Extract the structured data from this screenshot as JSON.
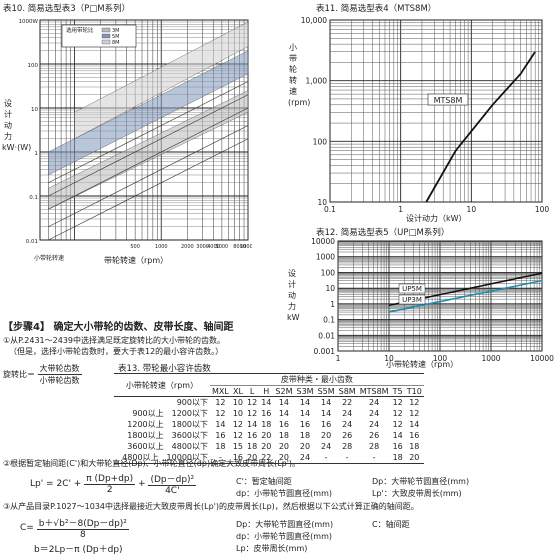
{
  "fig10": {
    "caption": "表10. 简易选型表3（P□M系列）",
    "legend_title": "选用带轮比",
    "legend_items": [
      "3M",
      "5M",
      "8M"
    ],
    "y_label": "设计动力 kW·(W)",
    "y_ticks": [
      "1000W",
      "100",
      "10",
      "1",
      "0.1",
      "0.01"
    ],
    "x_label": "带轮转速（rpm）",
    "x_ticks": [
      "500",
      "1000",
      "2000",
      "3000",
      "4000",
      "5000",
      "8000",
      "10000"
    ],
    "note": "小带轮转速"
  },
  "fig11": {
    "caption": "表11. 简易选型表4（MTS8M）",
    "y_label": "小带轮转速 (rpm)",
    "y_ticks": [
      "10,000",
      "1,000",
      "100",
      "10"
    ],
    "x_ticks": [
      "0.1",
      "1",
      "10",
      "100"
    ],
    "x_label": "设计动力（kW）",
    "series_label": "MTS8M"
  },
  "fig12": {
    "caption": "表12. 简易选型表5（UP□M系列）",
    "y_label": "设计动力 kW",
    "y_ticks": [
      "10000",
      "1000",
      "100",
      "10",
      "1",
      "0.1",
      "0.01",
      "0.001"
    ],
    "x_ticks": [
      "1",
      "10",
      "100",
      "1000",
      "10000"
    ],
    "x_label": "小带轮转速（rpm）",
    "series": [
      "UP3M",
      "UP5M"
    ]
  },
  "step4": {
    "title": "【步骤4】 确定大小带轮的齿数、皮带长度、轴间距",
    "item1_line1": "①从P.2431～2439中选择满足既定旋转比的大小带轮的齿数。",
    "item1_line2": "（但是，选择小带轮齿数时，要大于表12的最小容许齿数。）",
    "ratio_label": "旋转比＝",
    "ratio_num": "大带轮齿数",
    "ratio_den": "小带轮齿数"
  },
  "table13": {
    "caption": "表13. 带轮最小容许齿数",
    "rpm_header": "小带轮转速（rpm）",
    "group_header": "皮带种类・最小齿数",
    "columns": [
      "MXL",
      "XL",
      "L",
      "H",
      "S2M",
      "S3M",
      "S5M",
      "S8M",
      "MTS8M",
      "T5",
      "T10"
    ],
    "rows": [
      {
        "rpm": "900以下",
        "values": [
          "12",
          "10",
          "12",
          "14",
          "14",
          "14",
          "14",
          "22",
          "24",
          "12",
          "12"
        ]
      },
      {
        "rpm": "900以上　1200以下",
        "values": [
          "12",
          "10",
          "12",
          "16",
          "14",
          "14",
          "14",
          "24",
          "24",
          "12",
          "12"
        ]
      },
      {
        "rpm": "1200以上　1800以下",
        "values": [
          "14",
          "12",
          "14",
          "18",
          "16",
          "16",
          "16",
          "24",
          "24",
          "12",
          "14"
        ]
      },
      {
        "rpm": "1800以上　3600以下",
        "values": [
          "16",
          "12",
          "16",
          "20",
          "18",
          "18",
          "20",
          "26",
          "26",
          "14",
          "16"
        ]
      },
      {
        "rpm": "3600以上　4800以下",
        "values": [
          "18",
          "15",
          "18",
          "20",
          "20",
          "20",
          "24",
          "28",
          "28",
          "16",
          "18"
        ]
      },
      {
        "rpm": "4800以上　10000以下",
        "values": [
          "-",
          "16",
          "20",
          "22",
          "20",
          "24",
          "-",
          "-",
          "-",
          "18",
          "20"
        ]
      }
    ]
  },
  "item2": {
    "text": "②根据暂定轴间距(C')和大带轮直径(Dp)、小带轮直径(dp)确定大致皮带周长(Lp')。",
    "formula_left": "Lp' = 2C' +",
    "frac1_num": "π (Dp+dp)",
    "frac1_den": "2",
    "plus": "+",
    "frac2_num": "(Dp－dp)²",
    "frac2_den": "4C'",
    "legend": [
      "C'：暂定轴间距",
      "Dp：大带轮节圆直径(mm)",
      "dp：小带轮节圆直径(mm)",
      "Lp'：大致皮带周长(mm)"
    ]
  },
  "item3": {
    "text": "③从产品目录P.1027～1034中选择最接近大致皮带周长(Lp')的皮带周长(Lp)，然后根据以下公式计算正确的轴间距。",
    "c_left": "C=",
    "c_num": "b＋√b²－8(Dp－dp)²",
    "c_den": "8",
    "b_formula": "b＝2Lp－π (Dp＋dp)",
    "legend": [
      "Dp：大带轮节圆直径(mm)",
      "dp：小带轮节圆直径(mm)",
      "Lp：皮带周长(mm)",
      "C：轴间距"
    ]
  }
}
